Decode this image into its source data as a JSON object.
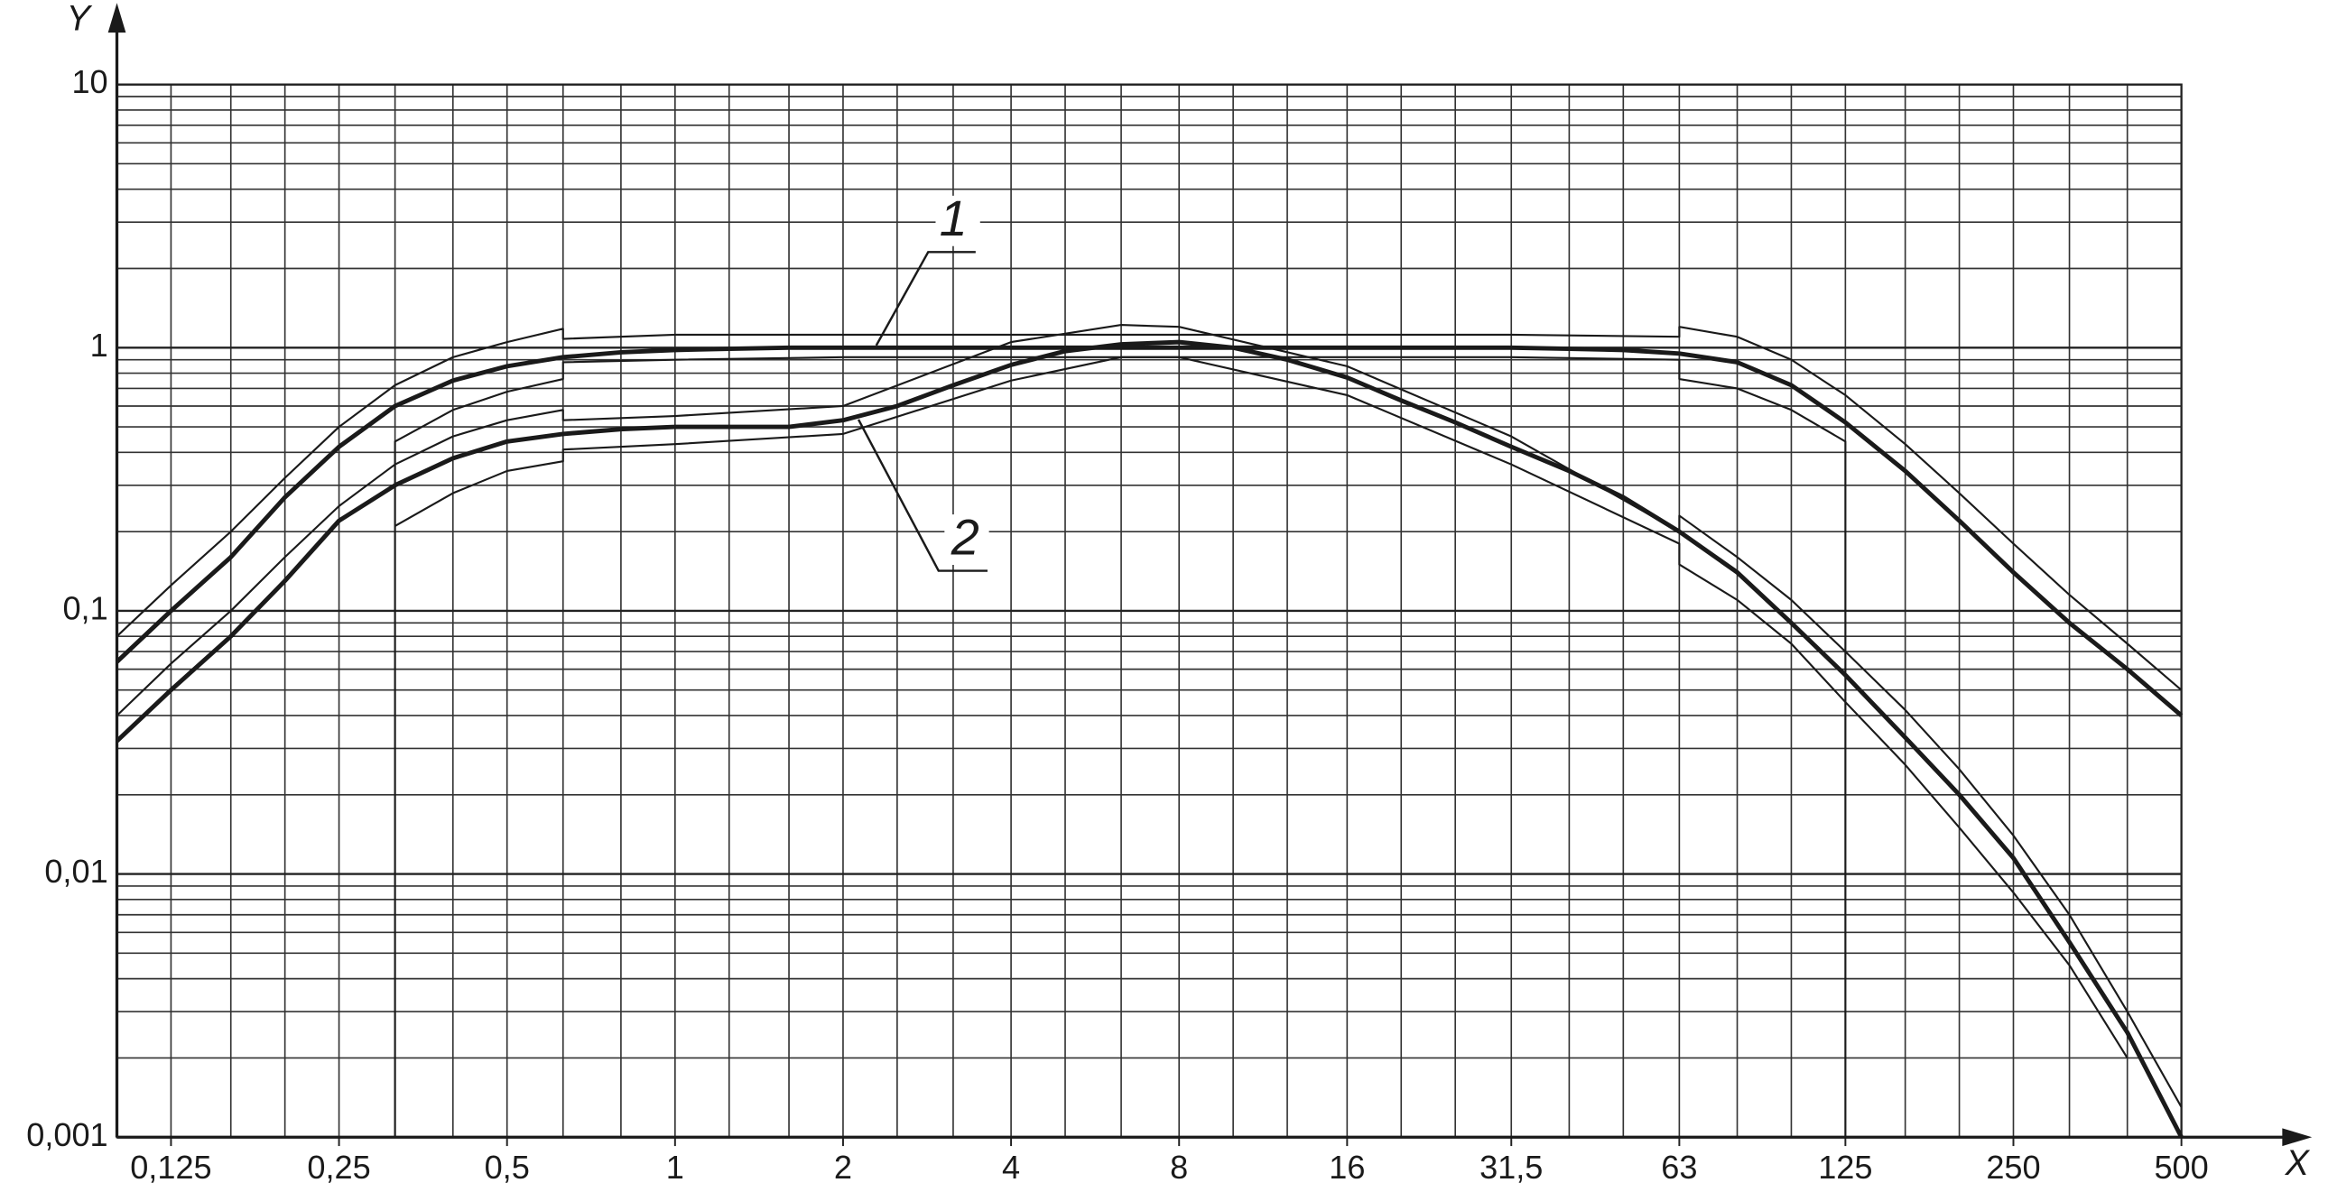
{
  "chart_data": {
    "type": "line",
    "x_label": "X",
    "y_label": "Y",
    "annotations": [
      "1",
      "2"
    ],
    "log_x": true,
    "log_y": true,
    "grid": true,
    "xlim": [
      0.1,
      500
    ],
    "ylim": [
      0.001,
      10
    ],
    "xticks": [
      {
        "value": 0.125,
        "label": "0,125"
      },
      {
        "value": 0.25,
        "label": "0,25"
      },
      {
        "value": 0.5,
        "label": "0,5"
      },
      1,
      2,
      4,
      8,
      16,
      {
        "value": 31.5,
        "label": "31,5"
      },
      63,
      125,
      250,
      500
    ],
    "yticks": [
      {
        "value": 0.001,
        "label": "0,001"
      },
      {
        "value": 0.01,
        "label": "0,01"
      },
      {
        "value": 0.1,
        "label": "0,1"
      },
      1,
      10
    ],
    "x_minor_ticks": [
      0.1,
      0.125,
      0.16,
      0.2,
      0.25,
      0.315,
      0.4,
      0.5,
      0.63,
      0.8,
      1,
      1.25,
      1.6,
      2,
      2.5,
      3.15,
      4,
      5,
      6.3,
      8,
      10,
      12.5,
      16,
      20,
      25,
      31.5,
      40,
      50,
      63,
      80,
      100,
      125,
      160,
      200,
      250,
      315,
      400,
      500
    ],
    "y_minor_ticks": [
      0.002,
      0.003,
      0.004,
      0.005,
      0.006,
      0.007,
      0.008,
      0.009,
      0.02,
      0.03,
      0.04,
      0.05,
      0.06,
      0.07,
      0.08,
      0.09,
      0.2,
      0.3,
      0.4,
      0.5,
      0.6,
      0.7,
      0.8,
      0.9,
      2,
      3,
      4,
      5,
      6,
      7,
      8,
      9
    ],
    "series": [
      {
        "color": "#1a1a1a",
        "line_width": 3,
        "x": [
          0.1,
          0.125,
          0.16,
          0.2,
          0.25,
          0.315,
          0.4,
          0.5,
          0.63,
          0.8,
          1,
          1.25,
          1.6,
          2,
          2.5,
          3.15,
          4,
          5,
          6.3,
          8,
          10,
          12.5,
          16,
          20,
          25,
          31.5,
          40,
          50,
          63,
          80,
          100,
          125,
          160,
          200,
          250,
          315,
          400,
          500
        ],
        "values": [
          0.064,
          0.1,
          0.16,
          0.27,
          0.42,
          0.6,
          0.75,
          0.85,
          0.92,
          0.96,
          0.98,
          0.99,
          1,
          1,
          1,
          1,
          1,
          1,
          1,
          1,
          1,
          1,
          1,
          1,
          1,
          1,
          0.99,
          0.98,
          0.95,
          0.88,
          0.72,
          0.52,
          0.34,
          0.22,
          0.14,
          0.09,
          0.06,
          0.04
        ]
      },
      {
        "color": "#1a1a1a",
        "line_width": 1.3,
        "x": [
          0.1,
          0.125,
          0.16,
          0.2,
          0.25,
          0.315,
          0.4,
          0.5,
          0.63,
          0.63,
          1,
          2,
          4,
          8,
          16,
          31.5,
          63,
          63,
          80,
          100,
          125,
          160,
          200,
          250,
          315,
          400,
          500
        ],
        "values": [
          0.08,
          0.125,
          0.2,
          0.32,
          0.5,
          0.72,
          0.92,
          1.05,
          1.18,
          1.08,
          1.12,
          1.12,
          1.12,
          1.12,
          1.12,
          1.12,
          1.1,
          1.2,
          1.1,
          0.9,
          0.66,
          0.43,
          0.28,
          0.18,
          0.115,
          0.075,
          0.05
        ]
      },
      {
        "color": "#1a1a1a",
        "line_width": 1.3,
        "x": [
          0.315,
          0.315,
          0.4,
          0.5,
          0.63,
          0.63,
          1,
          2,
          4,
          8,
          16,
          31.5,
          63,
          63,
          80,
          100,
          125,
          125
        ],
        "values": [
          0.001,
          0.44,
          0.58,
          0.68,
          0.76,
          0.88,
          0.9,
          0.92,
          0.92,
          0.92,
          0.92,
          0.92,
          0.9,
          0.76,
          0.7,
          0.58,
          0.44,
          0.001
        ]
      },
      {
        "color": "#1a1a1a",
        "line_width": 3,
        "x": [
          0.1,
          0.125,
          0.16,
          0.2,
          0.25,
          0.315,
          0.4,
          0.5,
          0.63,
          0.8,
          1,
          1.25,
          1.6,
          2,
          2.5,
          3.15,
          4,
          5,
          6.3,
          8,
          10,
          12.5,
          16,
          20,
          25,
          31.5,
          40,
          50,
          63,
          80,
          100,
          125,
          160,
          200,
          250,
          315,
          400,
          500
        ],
        "values": [
          0.032,
          0.05,
          0.08,
          0.13,
          0.22,
          0.3,
          0.38,
          0.44,
          0.47,
          0.49,
          0.5,
          0.5,
          0.5,
          0.53,
          0.6,
          0.72,
          0.86,
          0.97,
          1.03,
          1.05,
          1,
          0.9,
          0.77,
          0.63,
          0.52,
          0.42,
          0.34,
          0.27,
          0.2,
          0.14,
          0.09,
          0.057,
          0.033,
          0.02,
          0.0115,
          0.0055,
          0.0025,
          0.001
        ]
      },
      {
        "color": "#1a1a1a",
        "line_width": 1.3,
        "x": [
          0.1,
          0.125,
          0.16,
          0.2,
          0.25,
          0.315,
          0.4,
          0.5,
          0.63,
          0.63,
          1,
          2,
          4,
          6.3,
          8,
          16,
          31.5,
          63,
          63,
          80,
          100,
          125,
          160,
          200,
          250,
          315,
          400,
          500
        ],
        "values": [
          0.04,
          0.063,
          0.1,
          0.16,
          0.25,
          0.36,
          0.46,
          0.53,
          0.58,
          0.53,
          0.55,
          0.6,
          1.05,
          1.22,
          1.2,
          0.85,
          0.46,
          0.2,
          0.23,
          0.16,
          0.11,
          0.07,
          0.042,
          0.025,
          0.014,
          0.007,
          0.003,
          0.0013
        ]
      },
      {
        "color": "#1a1a1a",
        "line_width": 1.3,
        "x": [
          0.315,
          0.4,
          0.5,
          0.63,
          0.63,
          1,
          2,
          4,
          6.3,
          8,
          16,
          31.5,
          63,
          63,
          80,
          100,
          125,
          160,
          200,
          250,
          315,
          400
        ],
        "values": [
          0.21,
          0.28,
          0.34,
          0.37,
          0.41,
          0.43,
          0.47,
          0.75,
          0.92,
          0.92,
          0.66,
          0.36,
          0.18,
          0.15,
          0.11,
          0.075,
          0.045,
          0.026,
          0.015,
          0.0085,
          0.0045,
          0.002
        ]
      }
    ]
  }
}
